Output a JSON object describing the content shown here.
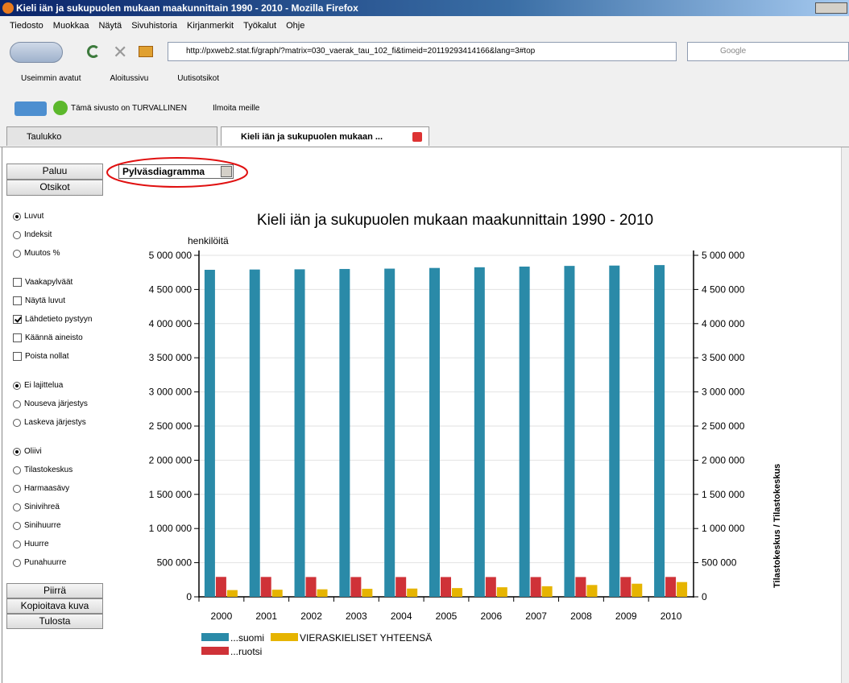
{
  "window": {
    "title": "Kieli iän ja sukupuolen mukaan maakunnittain 1990 - 2010 - Mozilla Firefox"
  },
  "menu": [
    "Tiedosto",
    "Muokkaa",
    "Näytä",
    "Sivuhistoria",
    "Kirjanmerkit",
    "Työkalut",
    "Ohje"
  ],
  "url": "http://pxweb2.stat.fi/graph/?matrix=030_vaerak_tau_102_fi&timeid=20119293414166&lang=3#top",
  "search_placeholder": "Google",
  "bookmarks": [
    "Useimmin avatut",
    "Aloitussivu",
    "Uutisotsikot"
  ],
  "security": {
    "status": "Tämä sivusto on TURVALLINEN",
    "report": "Ilmoita meille"
  },
  "tabs": [
    "Taulukko",
    "Kieli iän ja sukupuolen mukaan ..."
  ],
  "sidebar": {
    "buttons_top": [
      "Paluu",
      "Otsikot"
    ],
    "chart_type": "Pylväsdiagramma",
    "groups": [
      [
        {
          "label": "Luvut",
          "kind": "radio",
          "checked": true
        },
        {
          "label": "Indeksit",
          "kind": "radio",
          "checked": false
        },
        {
          "label": "Muutos %",
          "kind": "radio",
          "checked": false
        }
      ],
      [
        {
          "label": "Vaakapylväät",
          "kind": "checkbox",
          "checked": false
        },
        {
          "label": "Näytä luvut",
          "kind": "checkbox",
          "checked": false
        },
        {
          "label": "Lähdetieto pystyyn",
          "kind": "checkbox",
          "checked": true
        },
        {
          "label": "Käännä aineisto",
          "kind": "checkbox",
          "checked": false
        },
        {
          "label": "Poista nollat",
          "kind": "checkbox",
          "checked": false
        }
      ],
      [
        {
          "label": "Ei lajittelua",
          "kind": "radio",
          "checked": true
        },
        {
          "label": "Nouseva järjestys",
          "kind": "radio",
          "checked": false
        },
        {
          "label": "Laskeva järjestys",
          "kind": "radio",
          "checked": false
        }
      ],
      [
        {
          "label": "Oliivi",
          "kind": "radio",
          "checked": true
        },
        {
          "label": "Tilastokeskus",
          "kind": "radio",
          "checked": false
        },
        {
          "label": "Harmaasävy",
          "kind": "radio",
          "checked": false
        },
        {
          "label": "Sinivihreä",
          "kind": "radio",
          "checked": false
        },
        {
          "label": "Sinihuurre",
          "kind": "radio",
          "checked": false
        },
        {
          "label": "Huurre",
          "kind": "radio",
          "checked": false
        },
        {
          "label": "Punahuurre",
          "kind": "radio",
          "checked": false
        }
      ]
    ],
    "buttons_bottom": [
      "Piirrä",
      "Kopioitava kuva",
      "Tulosta"
    ]
  },
  "chart_data": {
    "type": "bar",
    "title": "Kieli iän ja sukupuolen mukaan maakunnittain 1990 - 2010",
    "y_label": "henkilöitä",
    "y2_label": "Tilastokeskus / Tilastokeskus",
    "categories": [
      "2000",
      "2001",
      "2002",
      "2003",
      "2004",
      "2005",
      "2006",
      "2007",
      "2008",
      "2009",
      "2010"
    ],
    "series": [
      {
        "name": "...suomi",
        "color": "#2a8aa8",
        "values": [
          4788000,
          4792000,
          4795000,
          4800000,
          4805000,
          4815000,
          4825000,
          4835000,
          4845000,
          4850000,
          4857000
        ]
      },
      {
        "name": "...ruotsi",
        "color": "#cf3238",
        "values": [
          291700,
          291000,
          290000,
          289700,
          289700,
          289700,
          289600,
          289400,
          289600,
          290000,
          290900
        ]
      },
      {
        "name": "VIERASKIELISET YHTEENSÄ",
        "color": "#e6b400",
        "values": [
          98600,
          104000,
          110000,
          117000,
          121000,
          128000,
          140000,
          155000,
          173000,
          192000,
          216000
        ]
      }
    ],
    "ylim": [
      0,
      5000000
    ],
    "yticks": [
      0,
      {
        "value": 500000,
        "label": "500 000"
      },
      {
        "value": 1000000,
        "label": "1 000 000"
      },
      {
        "value": 1500000,
        "label": "1 500 000"
      },
      {
        "value": 2000000,
        "label": "2 000 000"
      },
      {
        "value": 2500000,
        "label": "2 500 000"
      },
      {
        "value": 3000000,
        "label": "3 000 000"
      },
      {
        "value": 3500000,
        "label": "3 500 000"
      },
      {
        "value": 4000000,
        "label": "4 000 000"
      },
      {
        "value": 4500000,
        "label": "4 500 000"
      },
      {
        "value": 5000000,
        "label": "5 000 000"
      }
    ],
    "y2lim": [
      0,
      5000000
    ],
    "y2ticks": [
      0,
      {
        "value": 500000,
        "label": "500 000"
      },
      {
        "value": 1000000,
        "label": "1 000 000"
      },
      {
        "value": 1500000,
        "label": "1 500 000"
      },
      {
        "value": 2000000,
        "label": "2 000 000"
      },
      {
        "value": 2500000,
        "label": "2 500 000"
      },
      {
        "value": 3000000,
        "label": "3 000 000"
      },
      {
        "value": 3500000,
        "label": "3 500 000"
      },
      {
        "value": 4000000,
        "label": "4 000 000"
      },
      {
        "value": 4500000,
        "label": "4 500 000"
      },
      {
        "value": 5000000,
        "label": "5 000 000"
      }
    ],
    "grid": true,
    "legend": "bottom-left"
  }
}
